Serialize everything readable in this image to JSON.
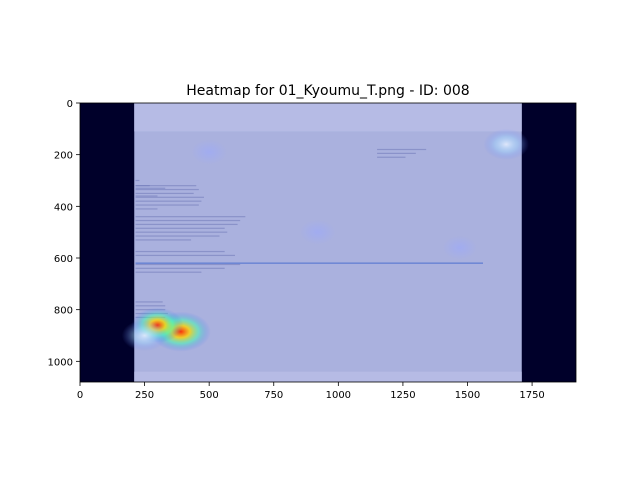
{
  "chart_data": {
    "type": "heatmap",
    "title": "Heatmap for 01_Kyoumu_T.png - ID: 008",
    "xlim": [
      0,
      1920
    ],
    "ylim": [
      1080,
      0
    ],
    "x_ticks": [
      0,
      250,
      500,
      750,
      1000,
      1250,
      1500,
      1750
    ],
    "y_ticks": [
      0,
      200,
      400,
      600,
      800,
      1000
    ],
    "grid": false,
    "background_image": "screenshot of a Japanese email client window (Mozilla Thunderbird) showing a school notice letter",
    "colormap": "jet",
    "hotspots": [
      {
        "x": 390,
        "y": 885,
        "intensity": 1.0
      },
      {
        "x": 300,
        "y": 860,
        "intensity": 0.75
      },
      {
        "x": 250,
        "y": 900,
        "intensity": 0.55
      },
      {
        "x": 1650,
        "y": 160,
        "intensity": 0.55
      },
      {
        "x": 920,
        "y": 500,
        "intensity": 0.25
      },
      {
        "x": 500,
        "y": 190,
        "intensity": 0.25
      },
      {
        "x": 1470,
        "y": 560,
        "intensity": 0.2
      }
    ]
  },
  "colors": {
    "outside": "#00002a",
    "page_tint": "#aab1de",
    "bar_strip": "#b7bde6",
    "text_line": "#7078b8",
    "link_line": "#4a6fd0"
  }
}
